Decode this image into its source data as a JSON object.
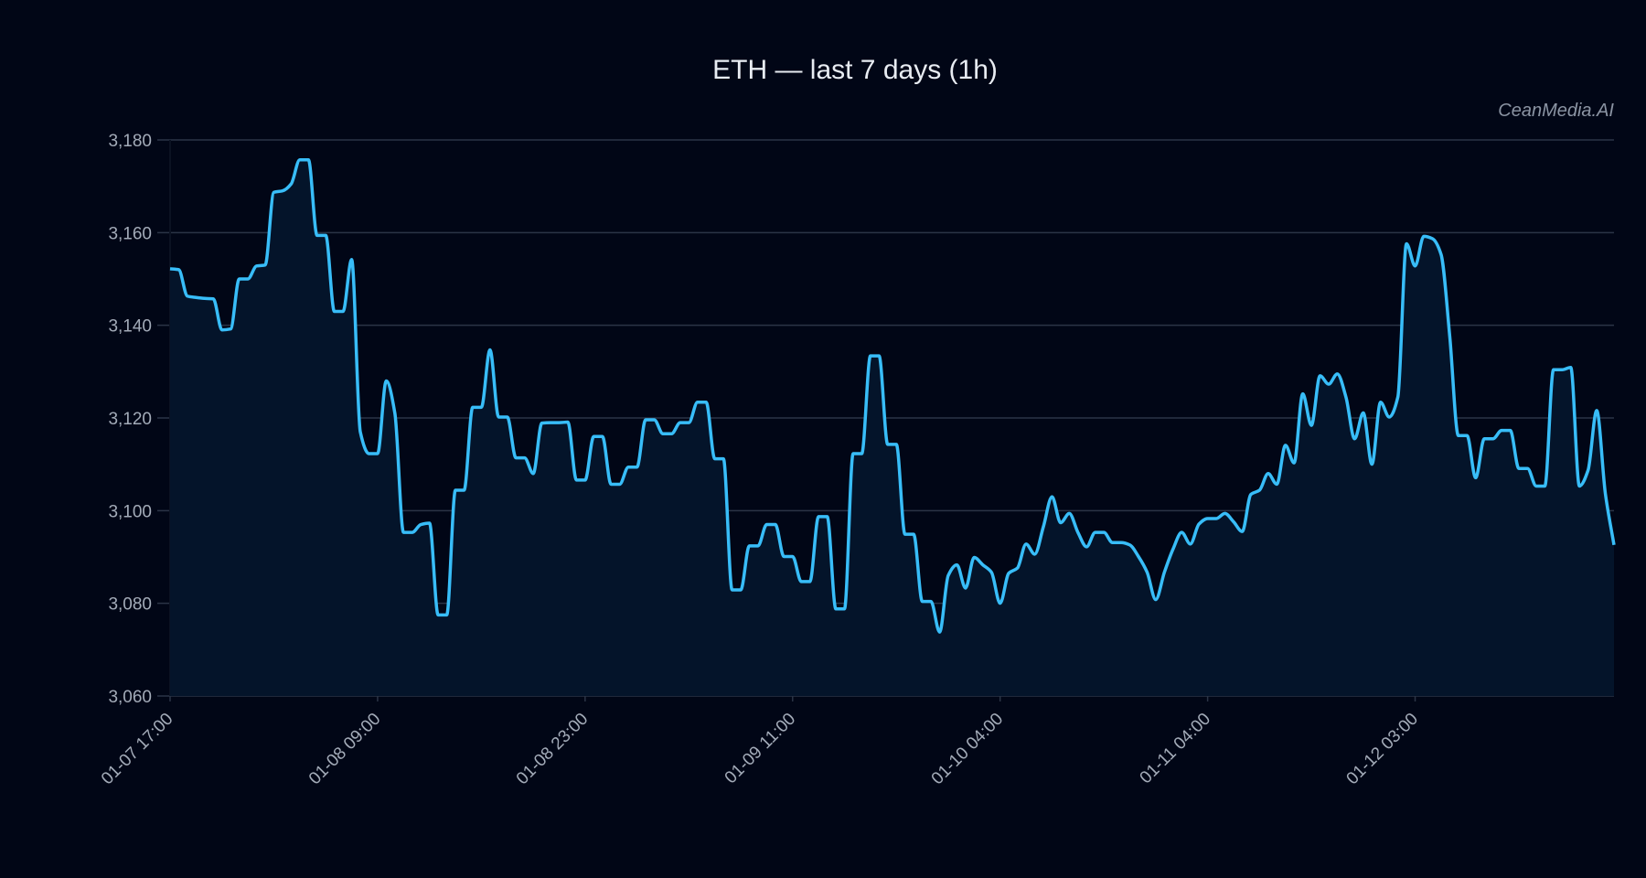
{
  "chart_data": {
    "type": "line",
    "title": "ETH — last 7 days (1h)",
    "watermark": "CeanMedia.AI",
    "xlabel": "",
    "ylabel": "",
    "ylim": [
      3060,
      3180
    ],
    "yticks": [
      3060,
      3080,
      3100,
      3120,
      3140,
      3160,
      3180
    ],
    "ytick_labels": [
      "3,060",
      "3,080",
      "3,100",
      "3,120",
      "3,140",
      "3,160",
      "3,180"
    ],
    "xticks": [
      {
        "index": 0,
        "label": "01-07 17:00"
      },
      {
        "index": 24,
        "label": "01-08 09:00"
      },
      {
        "index": 48,
        "label": "01-08 23:00"
      },
      {
        "index": 72,
        "label": "01-09 11:00"
      },
      {
        "index": 96,
        "label": "01-10 04:00"
      },
      {
        "index": 120,
        "label": "01-11 04:00"
      },
      {
        "index": 144,
        "label": "01-12 03:00"
      }
    ],
    "grid": "horizontal",
    "colors": {
      "background": "#010616",
      "line": "#38bdf8",
      "area": "#04142a",
      "grid": "#2b3446"
    },
    "series": [
      {
        "values": [
          3152.2,
          3152,
          3146.3,
          3146,
          3145.8,
          3145.7,
          3139,
          3139.2,
          3150,
          3150,
          3152.8,
          3153,
          3168.7,
          3169,
          3170.5,
          3175.7,
          3175.7,
          3159.4,
          3159.4,
          3143,
          3143,
          3154.2,
          3117,
          3112.3,
          3112.3,
          3128,
          3121,
          3095.3,
          3095.3,
          3097,
          3097.3,
          3077.5,
          3077.5,
          3104.4,
          3104.4,
          3122.3,
          3122.3,
          3134.7,
          3120.2,
          3120.2,
          3111.4,
          3111.4,
          3108,
          3118.9,
          3119,
          3119,
          3119.1,
          3106.6,
          3106.6,
          3116,
          3116,
          3105.7,
          3105.7,
          3109.4,
          3109.4,
          3119.6,
          3119.6,
          3116.6,
          3116.6,
          3119,
          3119,
          3123.4,
          3123.4,
          3111.2,
          3111.2,
          3082.9,
          3082.9,
          3092.4,
          3092.4,
          3097,
          3097,
          3090.1,
          3090.1,
          3084.7,
          3084.7,
          3098.7,
          3098.7,
          3078.8,
          3078.8,
          3112.3,
          3112.3,
          3133.4,
          3133.4,
          3114.3,
          3114.3,
          3094.9,
          3094.9,
          3080.4,
          3080.4,
          3073.8,
          3086,
          3088.3,
          3083.3,
          3089.9,
          3088.3,
          3086.7,
          3080,
          3086.5,
          3087.6,
          3092.8,
          3090.6,
          3096.5,
          3103,
          3097.4,
          3099.4,
          3095.3,
          3092.2,
          3095.3,
          3095.3,
          3093.1,
          3093.1,
          3092.6,
          3090.1,
          3086.7,
          3080.8,
          3086.7,
          3091.7,
          3095.3,
          3092.8,
          3097.1,
          3098.3,
          3098.3,
          3099.4,
          3097.6,
          3095.5,
          3103.5,
          3104.4,
          3108,
          3105.7,
          3114.1,
          3110.3,
          3125.2,
          3118.4,
          3129.1,
          3127.3,
          3129.5,
          3124.5,
          3115.5,
          3121.1,
          3110,
          3123.4,
          3120.2,
          3124.5,
          3157.6,
          3152.8,
          3159.2,
          3158.7,
          3155.3,
          3137.7,
          3116.2,
          3116.2,
          3107.1,
          3115.5,
          3115.5,
          3117.3,
          3117.3,
          3109.1,
          3109.1,
          3105.3,
          3105.3,
          3130.4,
          3130.4,
          3130.9,
          3105.3,
          3108.7,
          3121.6,
          3103.7,
          3092.6
        ]
      }
    ]
  }
}
